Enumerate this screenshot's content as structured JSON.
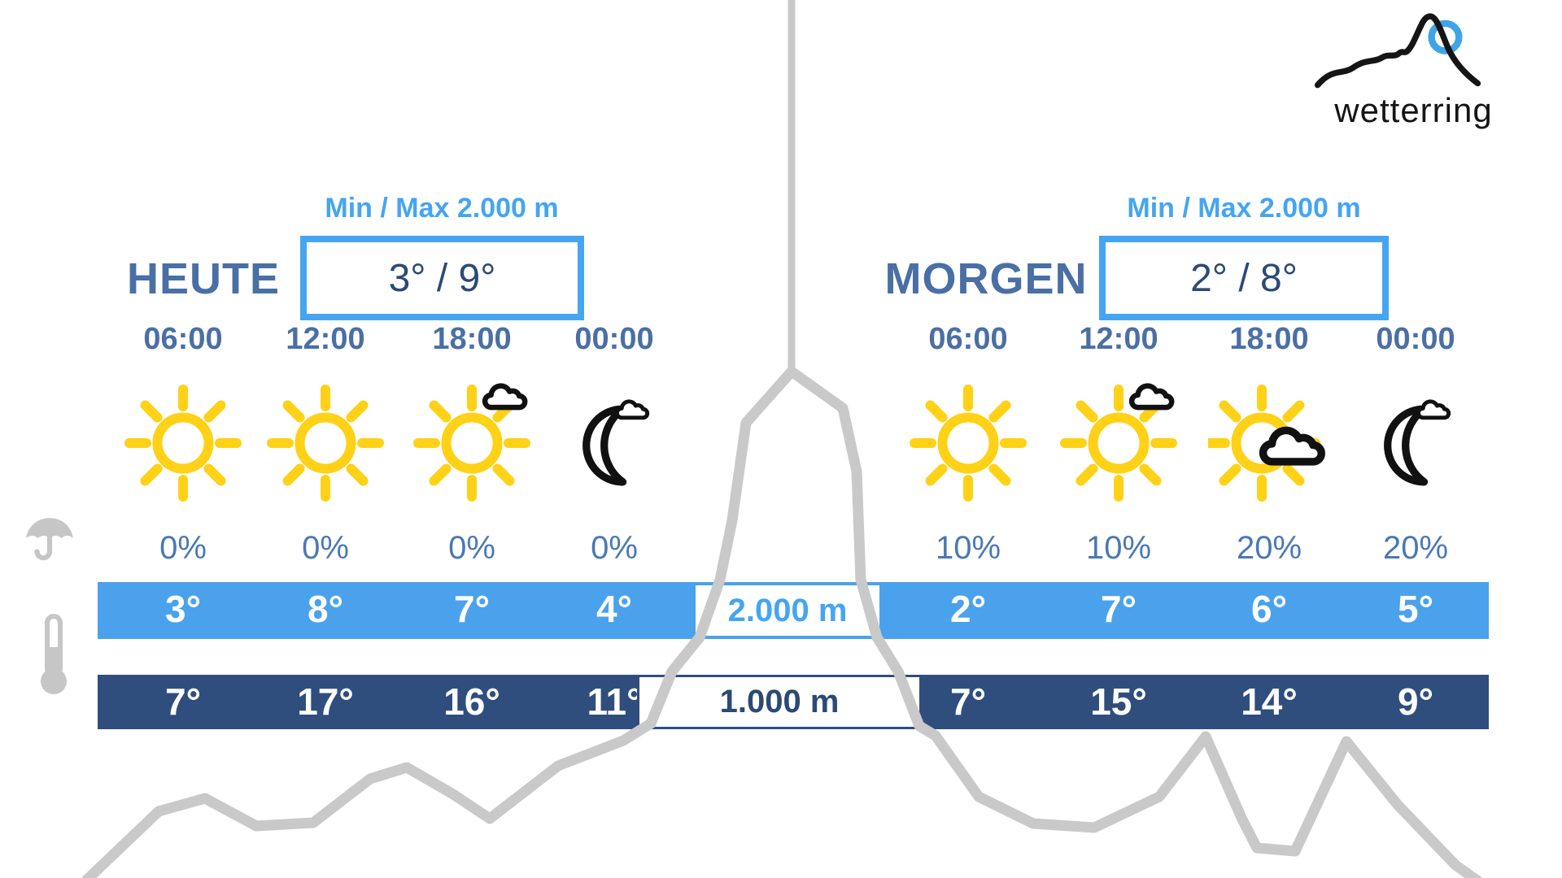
{
  "logo": {
    "text": "wetterring"
  },
  "altitude_labels": {
    "upper": "2.000 m",
    "lower": "1.000 m"
  },
  "side_icons": {
    "precip": "umbrella-icon",
    "temp": "thermometer-icon"
  },
  "colors": {
    "accent_light_blue": "#45a5f1",
    "bar_light_blue": "#4aa2ec",
    "bar_dark_navy": "#2f4e7e",
    "text_steel_blue": "#4a6fa5",
    "text_navy": "#2b4a75",
    "sun_yellow": "#FFD117",
    "mountain_gray": "#c9c9c9",
    "logo_circle_blue": "#41a4e8"
  },
  "days": [
    {
      "title": "HEUTE",
      "minmax_label": "Min / Max 2.000 m",
      "minmax_value": "3° / 9°",
      "hours": [
        {
          "time": "06:00",
          "icon": "sun",
          "precip": "0%",
          "temp_2000": "3°",
          "temp_1000": "7°"
        },
        {
          "time": "12:00",
          "icon": "sun",
          "precip": "0%",
          "temp_2000": "8°",
          "temp_1000": "17°"
        },
        {
          "time": "18:00",
          "icon": "sun-cloud-small",
          "precip": "0%",
          "temp_2000": "7°",
          "temp_1000": "16°"
        },
        {
          "time": "00:00",
          "icon": "moon-cloud",
          "precip": "0%",
          "temp_2000": "4°",
          "temp_1000": "11°"
        }
      ]
    },
    {
      "title": "MORGEN",
      "minmax_label": "Min / Max 2.000 m",
      "minmax_value": "2° / 8°",
      "hours": [
        {
          "time": "06:00",
          "icon": "sun",
          "precip": "10%",
          "temp_2000": "2°",
          "temp_1000": "7°"
        },
        {
          "time": "12:00",
          "icon": "sun-cloud-small",
          "precip": "10%",
          "temp_2000": "7°",
          "temp_1000": "15°"
        },
        {
          "time": "18:00",
          "icon": "sun-cloud-large",
          "precip": "20%",
          "temp_2000": "6°",
          "temp_1000": "14°"
        },
        {
          "time": "00:00",
          "icon": "moon-cloud",
          "precip": "20%",
          "temp_2000": "5°",
          "temp_1000": "9°"
        }
      ]
    }
  ]
}
